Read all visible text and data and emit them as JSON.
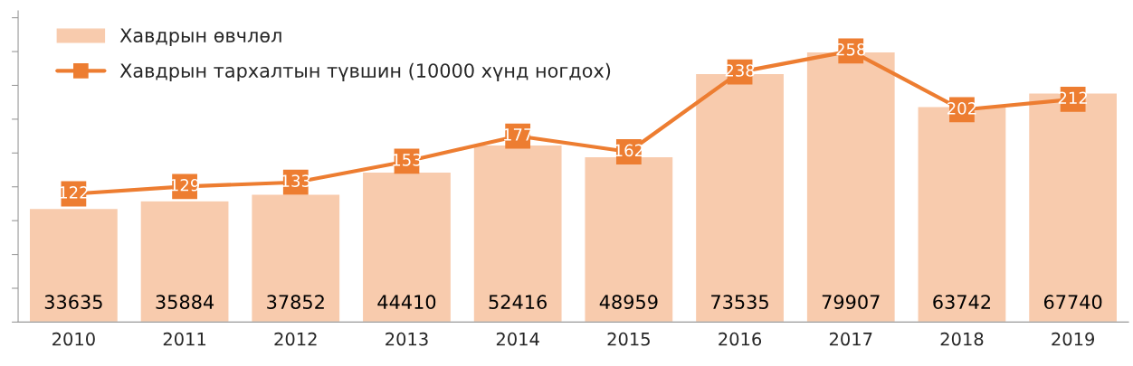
{
  "chart_data": {
    "type": "bar",
    "categories": [
      "2010",
      "2011",
      "2012",
      "2013",
      "2014",
      "2015",
      "2016",
      "2017",
      "2018",
      "2019"
    ],
    "series": [
      {
        "name": "Хавдрын өвчлөл",
        "color": "#f8cbad",
        "values": [
          33635,
          35884,
          37852,
          44410,
          52416,
          48959,
          73535,
          79907,
          63742,
          67740
        ]
      },
      {
        "name": "Хавдрын тархалтын түвшин (10000 хүнд ногдох)",
        "type": "line",
        "axis": "y2",
        "color": "#ed7d31",
        "values": [
          122,
          129,
          133,
          153,
          177,
          162,
          238,
          258,
          202,
          212
        ]
      }
    ],
    "ylim": [
      0,
      92000
    ],
    "yticks": [
      {
        "value": 0,
        "label": null
      },
      {
        "value": 10000,
        "label": null
      },
      {
        "value": 20000,
        "label": null
      },
      {
        "value": 30000,
        "label": null
      },
      {
        "value": 40000,
        "label": null
      },
      {
        "value": 50000,
        "label": null
      },
      {
        "value": 60000,
        "label": null
      },
      {
        "value": 70000,
        "label": null
      },
      {
        "value": 80000,
        "label": null
      },
      {
        "value": 90000,
        "label": null
      }
    ],
    "y2lim": [
      0,
      296
    ],
    "tick_labels": "x",
    "data_labels": true,
    "legend": "top left",
    "marker": "square",
    "grid": false
  }
}
